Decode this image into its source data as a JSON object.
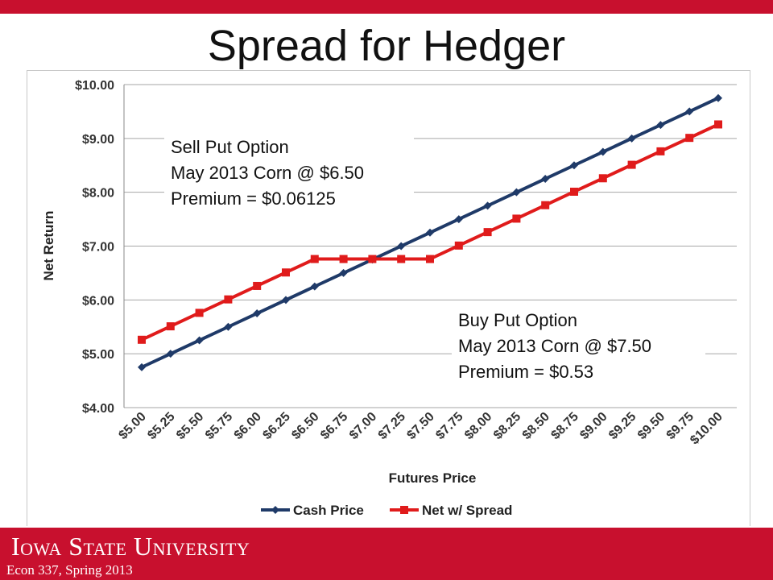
{
  "slide": {
    "title": "Spread for Hedger",
    "footer_university": "Iowa State University",
    "footer_course": "Econ 337, Spring 2013"
  },
  "colors": {
    "accent": "#c8102e",
    "cash_series": "#1f3a68",
    "spread_series": "#e01b1b"
  },
  "chart_data": {
    "type": "line",
    "xlabel": "Futures Price",
    "ylabel": "Net Return",
    "categories": [
      "$5.00",
      "$5.25",
      "$5.50",
      "$5.75",
      "$6.00",
      "$6.25",
      "$6.50",
      "$6.75",
      "$7.00",
      "$7.25",
      "$7.50",
      "$7.75",
      "$8.00",
      "$8.25",
      "$8.50",
      "$8.75",
      "$9.00",
      "$9.25",
      "$9.50",
      "$9.75",
      "$10.00"
    ],
    "x": [
      5.0,
      5.25,
      5.5,
      5.75,
      6.0,
      6.25,
      6.5,
      6.75,
      7.0,
      7.25,
      7.5,
      7.75,
      8.0,
      8.25,
      8.5,
      8.75,
      9.0,
      9.25,
      9.5,
      9.75,
      10.0
    ],
    "ylim": [
      4.0,
      10.0
    ],
    "yticks": [
      "$4.00",
      "$5.00",
      "$6.00",
      "$7.00",
      "$8.00",
      "$9.00",
      "$10.00"
    ],
    "grid": true,
    "legend_position": "bottom",
    "series": [
      {
        "name": "Cash Price",
        "marker": "diamond",
        "values": [
          4.75,
          5.0,
          5.25,
          5.5,
          5.75,
          6.0,
          6.25,
          6.5,
          6.75,
          7.0,
          7.25,
          7.5,
          7.75,
          8.0,
          8.25,
          8.5,
          8.75,
          9.0,
          9.25,
          9.5,
          9.75
        ]
      },
      {
        "name": "Net w/ Spread",
        "marker": "square",
        "values": [
          5.26,
          5.51,
          5.76,
          6.01,
          6.26,
          6.51,
          6.76,
          6.76,
          6.76,
          6.76,
          6.76,
          7.01,
          7.26,
          7.51,
          7.76,
          8.01,
          8.26,
          8.51,
          8.76,
          9.01,
          9.26
        ]
      }
    ],
    "annotations": [
      {
        "lines": [
          "Sell Put Option",
          "May 2013 Corn @ $6.50",
          "Premium = $0.06125"
        ]
      },
      {
        "lines": [
          "Buy Put Option",
          "May 2013 Corn @ $7.50",
          "Premium = $0.53"
        ]
      }
    ]
  }
}
